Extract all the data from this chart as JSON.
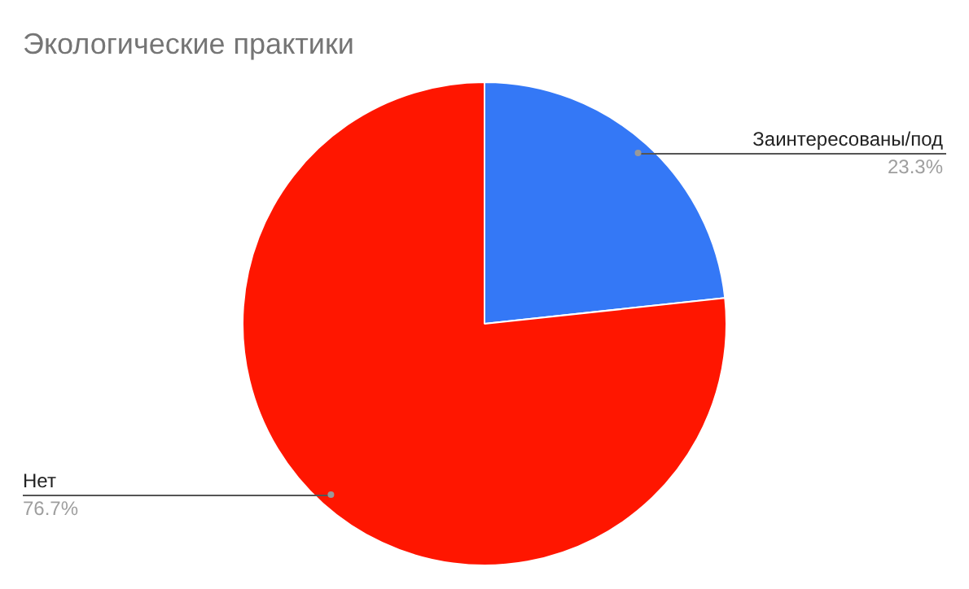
{
  "chart_data": {
    "type": "pie",
    "title": "Экологические практики",
    "categories": [
      "Заинтересованы/под",
      "Нет"
    ],
    "values": [
      23.3,
      76.7
    ],
    "colors": [
      "#3478f6",
      "#ff1600"
    ],
    "value_labels": [
      "23.3%",
      "76.7%"
    ],
    "legend": false
  }
}
